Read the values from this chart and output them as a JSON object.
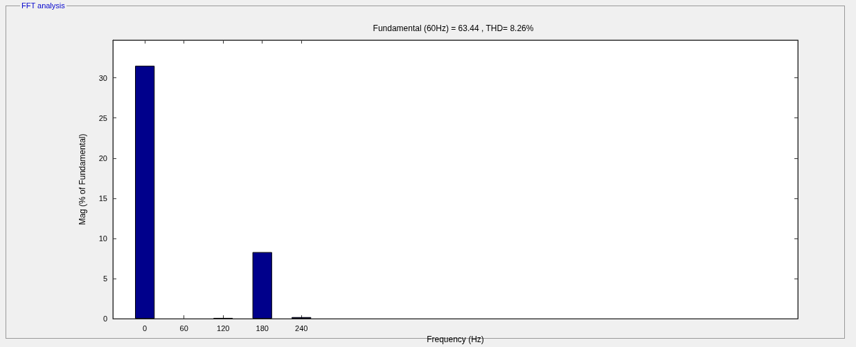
{
  "chart_data": {
    "type": "bar",
    "title": "Fundamental (60Hz) = 63.44 , THD= 8.26%",
    "xlabel": "Frequency (Hz)",
    "ylabel": "Mag (% of Fundamental)",
    "annotations": [
      "FFT analysis"
    ],
    "x": [
      0,
      60,
      120,
      180,
      240
    ],
    "values": [
      31.5,
      null,
      0.1,
      8.3,
      0.2
    ],
    "color": "#00008b",
    "xlim": [
      -49,
      1001
    ],
    "xticks": [
      0,
      60,
      120,
      180,
      240
    ],
    "ylim": [
      0,
      34.7
    ],
    "yticks": [
      0,
      5,
      10,
      15,
      20,
      25,
      30
    ],
    "grid": false
  }
}
